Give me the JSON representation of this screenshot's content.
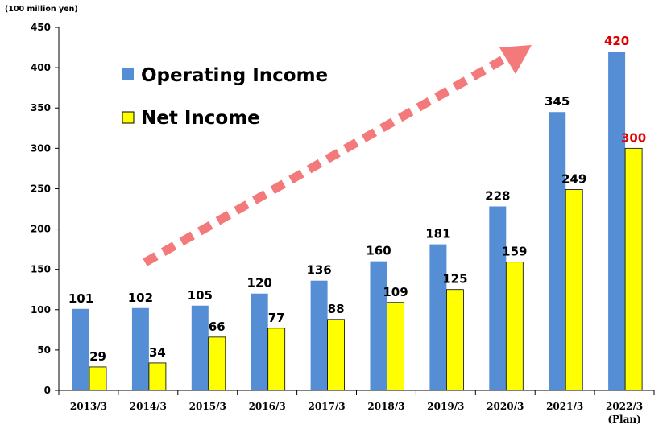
{
  "chart_data": {
    "type": "bar",
    "unit_label": "(100 million yen)",
    "categories": [
      "2013/3",
      "2014/3",
      "2015/3",
      "2016/3",
      "2017/3",
      "2018/3",
      "2019/3",
      "2020/3",
      "2021/3",
      "2022/3"
    ],
    "category_notes": [
      "",
      "",
      "",
      "",
      "",
      "",
      "",
      "",
      "",
      "(Plan)"
    ],
    "series": [
      {
        "name": "Operating Income",
        "values": [
          101,
          102,
          105,
          120,
          136,
          160,
          181,
          228,
          345,
          420
        ],
        "color": "#558ed5"
      },
      {
        "name": "Net Income",
        "values": [
          29,
          34,
          66,
          77,
          88,
          109,
          125,
          159,
          249,
          300
        ],
        "color": "#ffff00"
      }
    ],
    "ylim": [
      0,
      450
    ],
    "yticks": [
      0,
      50,
      100,
      150,
      200,
      250,
      300,
      350,
      400,
      450
    ],
    "grid": false,
    "legend_position": "top-left",
    "label_color": "#000000",
    "highlight_label_color": "#e00000",
    "highlight_category_index": 9,
    "trend_arrow_color": "#f4797a"
  }
}
